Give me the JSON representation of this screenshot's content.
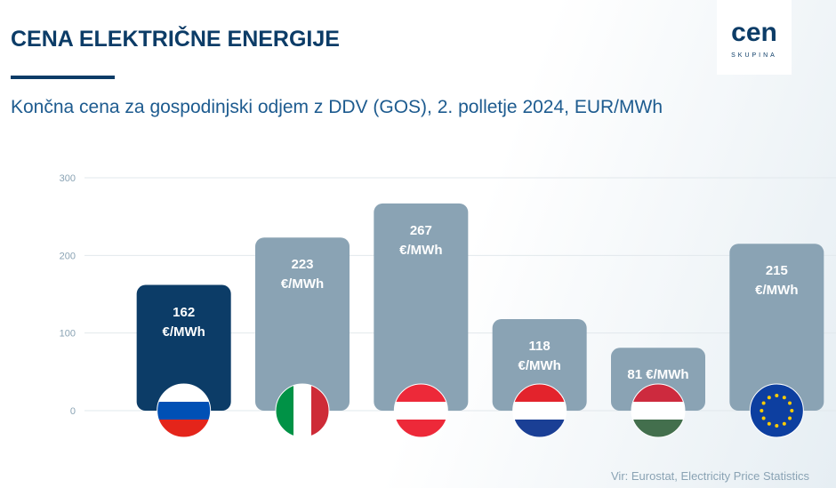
{
  "logo": {
    "mark": "cen",
    "text": "SKUPINA"
  },
  "chart_data": {
    "type": "bar",
    "title": "CENA ELEKTRIČNE ENERGIJE",
    "subtitle": "Končna cena za gospodinjski odjem z DDV (GOS), 2. polletje 2024, EUR/MWh",
    "source": "Vir: Eurostat, Electricity Price Statistics",
    "values": [
      162,
      223,
      267,
      118,
      81,
      215
    ],
    "value_labels": [
      "162 €/MWh",
      "223 €/MWh",
      "267 €/MWh",
      "118 €/MWh",
      "81 €/MWh",
      "215 €/MWh"
    ],
    "colors": [
      "#0c3c67",
      "#8aa3b4",
      "#8aa3b4",
      "#8aa3b4",
      "#8aa3b4",
      "#8aa3b4"
    ],
    "ylim": [
      0,
      300
    ],
    "yticks": [
      0,
      100,
      200,
      300
    ],
    "grid": true
  }
}
